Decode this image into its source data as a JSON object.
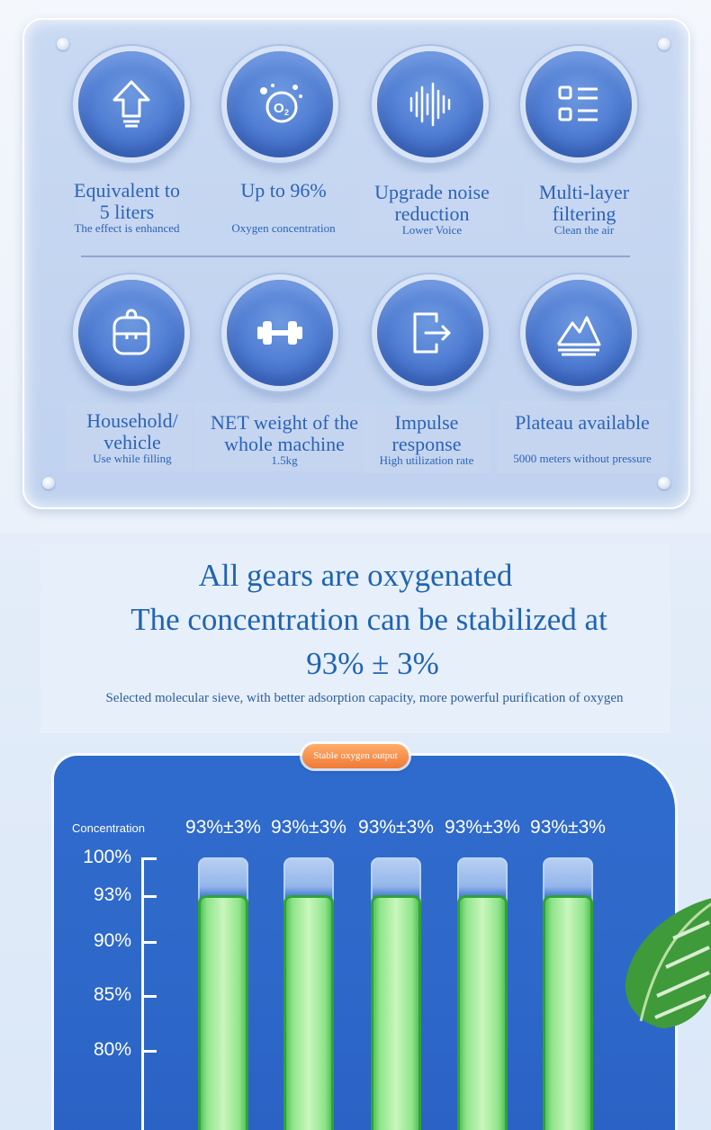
{
  "features": [
    {
      "icon": "arrow-up-icon",
      "title": "Equivalent to 5 liters",
      "title_lines": [
        "Equivalent to",
        "5 liters"
      ],
      "subtitle": "The effect is enhanced"
    },
    {
      "icon": "oxygen-o2-icon",
      "title_lines": [
        "Up to 96%"
      ],
      "subtitle": "Oxygen concentration"
    },
    {
      "icon": "sound-wave-icon",
      "title_lines": [
        "Upgrade noise",
        "reduction"
      ],
      "subtitle": "Lower Voice"
    },
    {
      "icon": "list-icon",
      "title_lines": [
        "Multi-layer",
        "filtering"
      ],
      "subtitle": "Clean the air"
    },
    {
      "icon": "backpack-icon",
      "title_lines": [
        "Household/",
        "vehicle"
      ],
      "subtitle": "Use while filling"
    },
    {
      "icon": "dumbbell-icon",
      "title_lines": [
        "NET weight of the",
        "whole machine"
      ],
      "subtitle": "1.5kg"
    },
    {
      "icon": "exit-door-icon",
      "title_lines": [
        "Impulse",
        "response"
      ],
      "subtitle": "High utilization rate"
    },
    {
      "icon": "mountain-icon",
      "title_lines": [
        "Plateau available"
      ],
      "subtitle": "5000 meters without  pressure"
    }
  ],
  "headline": {
    "line1": "All gears are oxygenated",
    "line2": "The concentration can be stabilized at",
    "line3": "93% ± 3%",
    "sub": "Selected molecular sieve, with better adsorption capacity, more powerful purification of oxygen"
  },
  "badge": "Stable oxygen output",
  "chart_data": {
    "type": "bar",
    "ylabel": "Concentration",
    "y_ticks": [
      "100%",
      "93%",
      "90%",
      "85%",
      "80%"
    ],
    "bar_labels": [
      "93%±3%",
      "93%±3%",
      "93%±3%",
      "93%±3%",
      "93%±3%"
    ],
    "values": [
      93,
      93,
      93,
      93,
      93
    ]
  },
  "colors": {
    "accent": "#2b63b8",
    "panel": "#2f6bcc",
    "bar_fill": "#8fe48a",
    "badge": "#f07a36"
  }
}
